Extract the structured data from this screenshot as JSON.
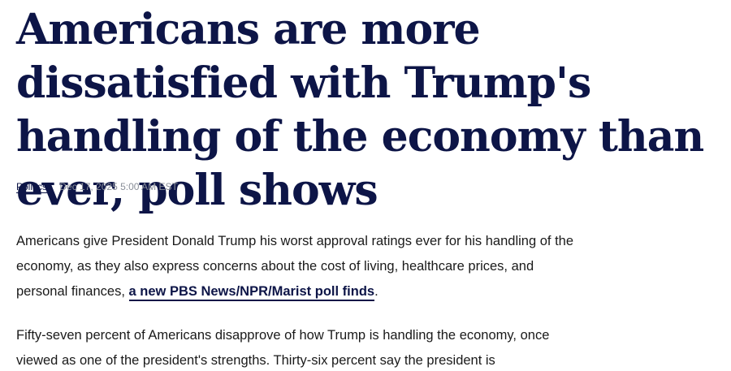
{
  "article": {
    "headline": "Americans are more dissatisfied with Trump's handling of the economy than ever, poll shows",
    "section": "Politics",
    "date": "Dec 17, 2025 5:00 AM EST",
    "paragraph1": {
      "text_before": "Americans give President Donald Trump his worst approval ratings ever for his handling of the economy, as they also express concerns about the cost of living, healthcare prices, and personal finances, ",
      "link_text": "a new PBS News/NPR/Marist poll finds",
      "text_after": "."
    },
    "paragraph2": {
      "text": "Fifty-seven percent of Americans disapprove of how Trump is handling the economy, once viewed as one of the president's strengths. Thirty-six percent say the president is"
    }
  },
  "colors": {
    "headline": "#0d1547",
    "body_text": "#1a1a1a",
    "meta_date": "#8a8f99"
  }
}
